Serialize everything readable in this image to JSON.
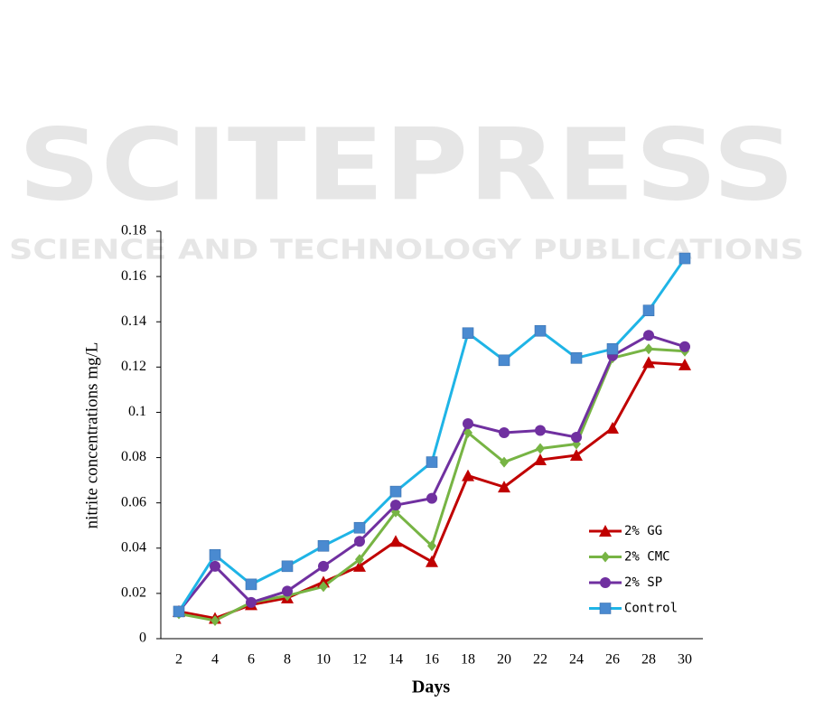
{
  "watermark": {
    "title": "SCITEPRESS",
    "subtitle": "SCIENCE AND TECHNOLOGY PUBLICATIONS"
  },
  "chart_data": {
    "type": "line",
    "xlabel": "Days",
    "ylabel": "nitrite concentrations mg/L",
    "categories": [
      "2",
      "4",
      "6",
      "8",
      "10",
      "12",
      "14",
      "16",
      "18",
      "20",
      "22",
      "24",
      "26",
      "28",
      "30"
    ],
    "ylim": [
      0,
      0.18
    ],
    "yticks": [
      0,
      0.02,
      0.04,
      0.06,
      0.08,
      0.1,
      0.12,
      0.14,
      0.16,
      0.18
    ],
    "grid": false,
    "legend": "lower right",
    "series": [
      {
        "name": "2% GG",
        "color": "#c00000",
        "marker": "triangle",
        "values": [
          0.012,
          0.009,
          0.015,
          0.018,
          0.025,
          0.032,
          0.043,
          0.034,
          0.072,
          0.067,
          0.079,
          0.081,
          0.093,
          0.122,
          0.121
        ]
      },
      {
        "name": "2% CMC",
        "color": "#77b444",
        "marker": "diamond",
        "values": [
          0.011,
          0.008,
          0.016,
          0.019,
          0.023,
          0.035,
          0.056,
          0.041,
          0.091,
          0.078,
          0.084,
          0.086,
          0.124,
          0.128,
          0.127
        ]
      },
      {
        "name": "2% SP",
        "color": "#7030a0",
        "marker": "circle",
        "values": [
          0.012,
          0.032,
          0.016,
          0.021,
          0.032,
          0.043,
          0.059,
          0.062,
          0.095,
          0.091,
          0.092,
          0.089,
          0.125,
          0.134,
          0.129
        ]
      },
      {
        "name": "Control",
        "color": "#1fb4e6",
        "marker": "square",
        "marker_color": "#4a8ad0",
        "values": [
          0.012,
          0.037,
          0.024,
          0.032,
          0.041,
          0.049,
          0.065,
          0.078,
          0.135,
          0.123,
          0.136,
          0.124,
          0.128,
          0.145,
          0.168
        ]
      }
    ]
  }
}
